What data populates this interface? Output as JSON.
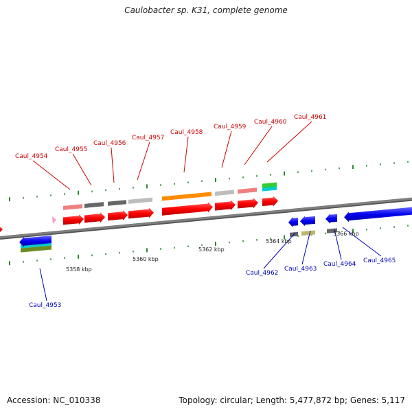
{
  "title": "Caulobacter sp. K31, complete genome",
  "footer": {
    "accession": "Accession: NC_010338",
    "summary": "Topology: circular; Length: 5,477,872 bp; Genes: 5,117"
  },
  "scale_labels": [
    "5358 kbp",
    "5360 kbp",
    "5362 kbp",
    "5364 kbp",
    "5366 kbp"
  ],
  "genes": [
    {
      "name": "Caul_4953",
      "strand": "minus"
    },
    {
      "name": "Caul_4954",
      "strand": "plus"
    },
    {
      "name": "Caul_4955",
      "strand": "plus"
    },
    {
      "name": "Caul_4956",
      "strand": "plus"
    },
    {
      "name": "Caul_4957",
      "strand": "plus"
    },
    {
      "name": "Caul_4958",
      "strand": "plus"
    },
    {
      "name": "Caul_4959",
      "strand": "plus"
    },
    {
      "name": "Caul_4960",
      "strand": "plus"
    },
    {
      "name": "Caul_4961",
      "strand": "plus"
    },
    {
      "name": "Caul_4962",
      "strand": "minus"
    },
    {
      "name": "Caul_4963",
      "strand": "minus"
    },
    {
      "name": "Caul_4964",
      "strand": "minus"
    },
    {
      "name": "Caul_4965",
      "strand": "minus"
    }
  ],
  "colors": {
    "plus_strand": "#ff0000",
    "minus_strand": "#0000ee",
    "backbone": "#808080",
    "plus_label": "#cc0000",
    "minus_label": "#0000bb",
    "tick": "#2e8b2e"
  }
}
